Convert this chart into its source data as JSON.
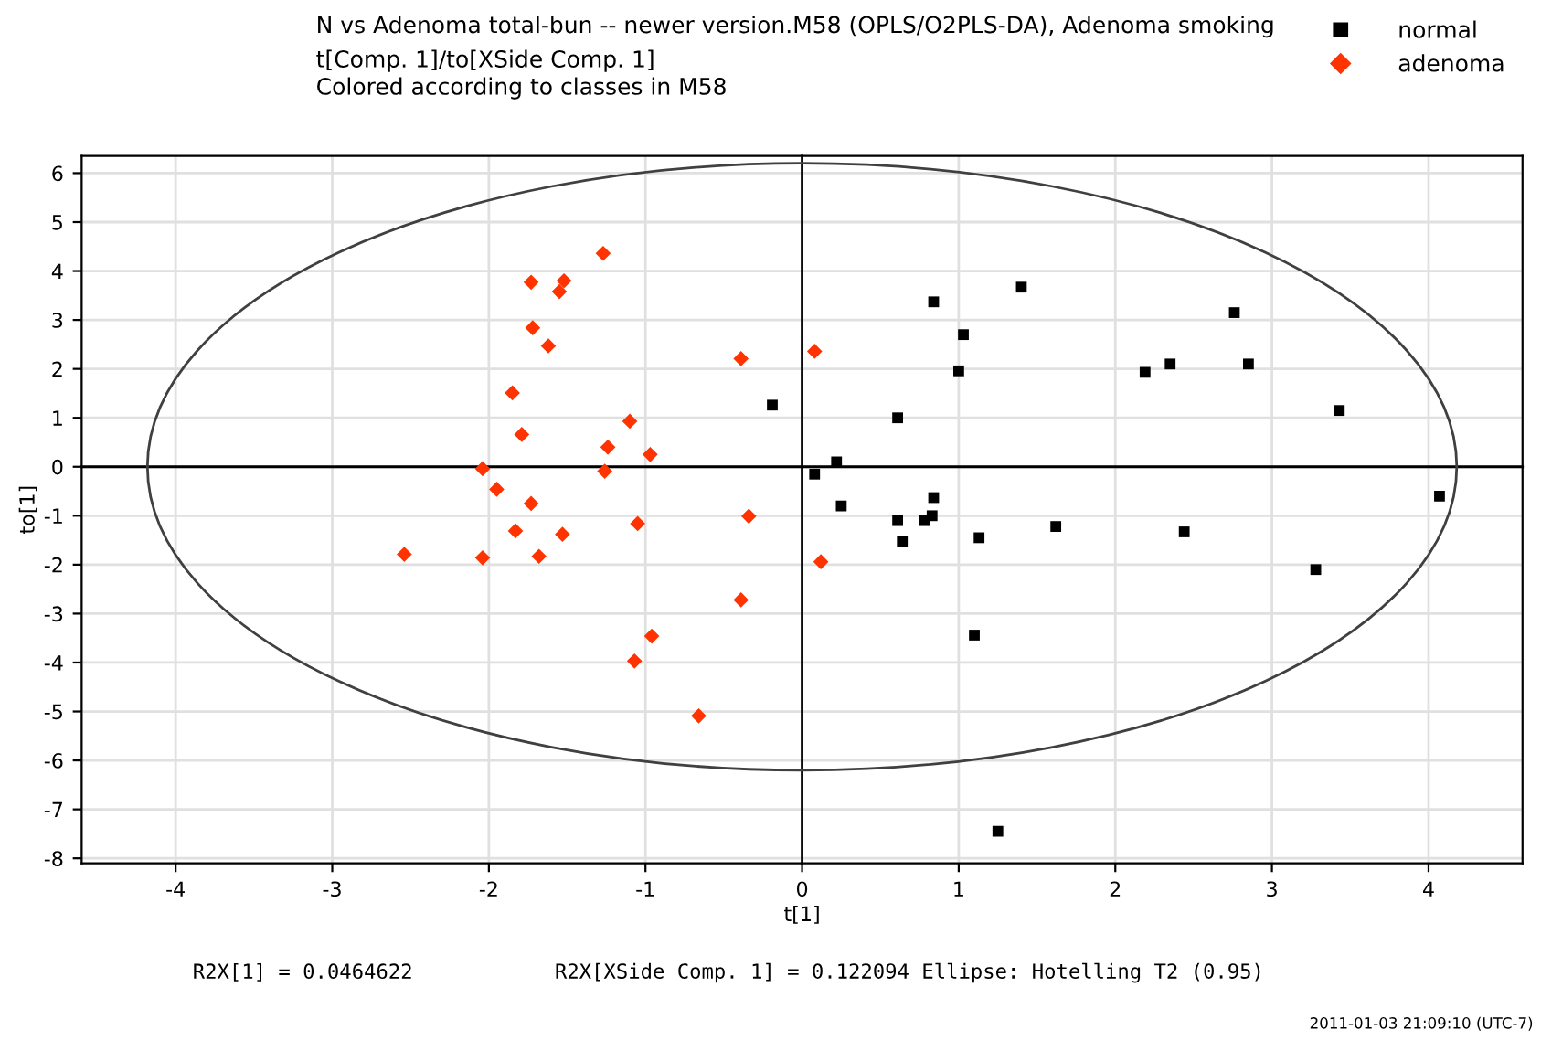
{
  "chart_data": {
    "type": "scatter",
    "title": "N vs Adenoma total-bun -- newer version.M58 (OPLS/O2PLS-DA), Adenoma smoking",
    "subtitle": "t[Comp. 1]/to[XSide Comp. 1]\nColored according to classes in M58",
    "xlabel": "t[1]",
    "ylabel": "to[1]",
    "xlim": [
      -4.6,
      4.6
    ],
    "xticks": [
      -4,
      -3,
      -2,
      -1,
      0,
      1,
      2,
      3,
      4
    ],
    "ylim": [
      -8.1,
      6.35
    ],
    "yticks": [
      -8,
      -7,
      -6,
      -5,
      -4,
      -3,
      -2,
      -1,
      0,
      1,
      2,
      3,
      4,
      5,
      6
    ],
    "grid": true,
    "legend": "top right",
    "series": [
      {
        "name": "normal",
        "color": "#000000",
        "marker": "square",
        "x": [
          -0.19,
          0.61,
          0.08,
          0.22,
          0.25,
          0.84,
          1.03,
          1.0,
          1.4,
          2.19,
          2.35,
          2.76,
          2.85,
          3.43,
          4.07,
          0.61,
          0.64,
          0.78,
          0.83,
          0.84,
          1.13,
          1.62,
          2.44,
          3.28,
          1.1,
          1.25
        ],
        "values": [
          1.26,
          1.0,
          -0.15,
          0.1,
          -0.8,
          3.37,
          2.7,
          1.96,
          3.67,
          1.93,
          2.1,
          3.15,
          2.1,
          1.15,
          -0.6,
          -1.1,
          -1.52,
          -1.1,
          -1.0,
          -0.63,
          -1.45,
          -1.22,
          -1.33,
          -2.1,
          -3.44,
          -7.45
        ]
      },
      {
        "name": "adenoma",
        "color": "#ff3300",
        "marker": "diamond",
        "x": [
          -1.27,
          -1.73,
          -1.52,
          -1.55,
          -1.72,
          -1.62,
          -1.85,
          -1.79,
          -1.1,
          -1.24,
          -0.97,
          -2.04,
          -1.26,
          -1.95,
          -1.73,
          -1.83,
          -1.53,
          -1.05,
          -2.54,
          -2.04,
          -1.68,
          -0.39,
          0.08,
          -0.34,
          0.12,
          -0.39,
          -0.96,
          -1.07,
          -0.66
        ],
        "values": [
          4.36,
          3.77,
          3.8,
          3.58,
          2.84,
          2.47,
          1.51,
          0.66,
          0.93,
          0.4,
          0.25,
          -0.04,
          -0.09,
          -0.46,
          -0.75,
          -1.31,
          -1.38,
          -1.16,
          -1.79,
          -1.86,
          -1.83,
          2.21,
          2.36,
          -1.01,
          -1.94,
          -2.72,
          -3.46,
          -3.97,
          -5.09
        ]
      }
    ],
    "annotations": [
      "R2X[1] = 0.0464622",
      "R2X[XSide Comp. 1] = 0.122094 Ellipse: Hotelling T2 (0.95)",
      "2011-01-03 21:09:10 (UTC-7)"
    ]
  }
}
